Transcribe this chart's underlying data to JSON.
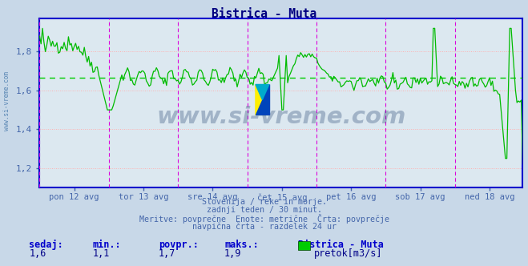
{
  "title": "Bistrica - Muta",
  "title_color": "#000080",
  "bg_color": "#c8d8e8",
  "plot_bg_color": "#dce8f0",
  "grid_h_color": "#ffb0b0",
  "grid_v_color": "#c0c0d0",
  "avg_line_color": "#00cc00",
  "avg_line_value": 1.665,
  "line_color": "#00bb00",
  "vline_color": "#dd00dd",
  "axis_color": "#0000cc",
  "x_labels": [
    "pon 12 avg",
    "tor 13 avg",
    "sre 14 avg",
    "čet 15 avg",
    "pet 16 avg",
    "sob 17 avg",
    "ned 18 avg"
  ],
  "x_label_color": "#4466aa",
  "y_ticks": [
    1.2,
    1.4,
    1.6,
    1.8
  ],
  "ylim": [
    1.1,
    1.97
  ],
  "ylabel_color": "#4466aa",
  "watermark_text": "www.si-vreme.com",
  "footer_lines": [
    "Slovenija / reke in morje.",
    "zadnji teden / 30 minut.",
    "Meritve: povprečne  Enote: metrične  Črta: povprečje",
    "navpična črta - razdelek 24 ur"
  ],
  "footer_color": "#4466aa",
  "stats_labels": [
    "sedaj:",
    "min.:",
    "povpr.:",
    "maks.:"
  ],
  "stats_values": [
    "1,6",
    "1,1",
    "1,7",
    "1,9"
  ],
  "stats_bold_color": "#0000cc",
  "stats_val_color": "#000088",
  "legend_label": "pretok[m3/s]",
  "legend_station": "Bistrica - Muta",
  "legend_color": "#00cc00",
  "num_points": 336,
  "seed": 42
}
